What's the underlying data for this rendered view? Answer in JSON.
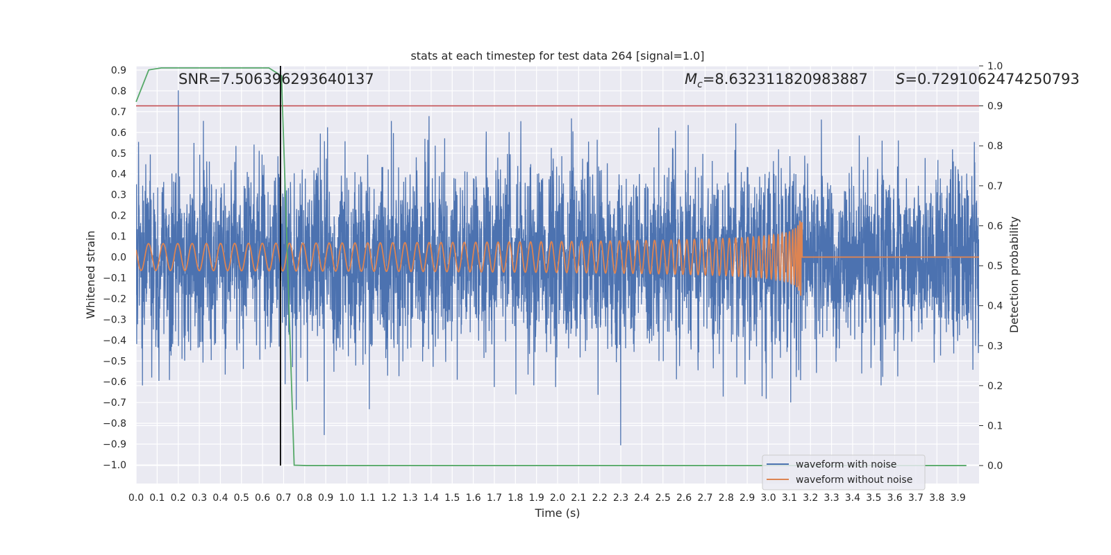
{
  "chart_data": {
    "type": "line",
    "title": "stats at each timestep for test data 264 [signal=1.0]",
    "xlabel": "Time (s)",
    "ylabel": "Whitened strain",
    "y2label": "Detection probability",
    "xlim": [
      0.0,
      4.0
    ],
    "ylim": [
      -1.09,
      0.92
    ],
    "y2lim": [
      -0.045,
      1.0
    ],
    "xticks": [
      "0.0",
      "0.1",
      "0.2",
      "0.3",
      "0.4",
      "0.5",
      "0.6",
      "0.7",
      "0.8",
      "0.9",
      "1.0",
      "1.1",
      "1.2",
      "1.3",
      "1.4",
      "1.5",
      "1.6",
      "1.7",
      "1.8",
      "1.9",
      "2.0",
      "2.1",
      "2.2",
      "2.3",
      "2.4",
      "2.5",
      "2.6",
      "2.7",
      "2.8",
      "2.9",
      "3.0",
      "3.1",
      "3.2",
      "3.3",
      "3.4",
      "3.5",
      "3.6",
      "3.7",
      "3.8",
      "3.9"
    ],
    "yticks": [
      "0.9",
      "0.8",
      "0.7",
      "0.6",
      "0.5",
      "0.4",
      "0.3",
      "0.2",
      "0.1",
      "0.0",
      "−0.1",
      "−0.2",
      "−0.3",
      "−0.4",
      "−0.5",
      "−0.6",
      "−0.7",
      "−0.8",
      "−0.9",
      "−1.0"
    ],
    "y2ticks": [
      "1.0",
      "0.9",
      "0.8",
      "0.7",
      "0.6",
      "0.5",
      "0.4",
      "0.3",
      "0.2",
      "0.1",
      "0.0"
    ],
    "grid": true,
    "legend_position": "bottom-right",
    "annotations": {
      "snr": "SNR=7.506396293640137",
      "mc": "M",
      "mc_sub": "c",
      "mc_value": "=8.632311820983887",
      "s": "S",
      "s_value": "=0.7291062474250793"
    },
    "threshold": 0.9,
    "marker_time": 0.685,
    "series": [
      {
        "name": "waveform with noise",
        "color": "#4c72b0",
        "kind": "noise",
        "std": 0.22,
        "samples": 4096
      },
      {
        "name": "waveform without noise",
        "color": "#dd8452",
        "kind": "chirp",
        "t_merge": 3.16,
        "amp_start": 0.03,
        "amp_end": 0.22
      },
      {
        "name": "detection probability",
        "color": "#55a868",
        "kind": "probability",
        "x": [
          0.0,
          0.06,
          0.12,
          0.19,
          0.25,
          0.31,
          0.38,
          0.44,
          0.5,
          0.56,
          0.63,
          0.69,
          0.75,
          0.81,
          0.88,
          0.94,
          1.0,
          1.06,
          1.13,
          1.19,
          1.25,
          1.31,
          1.38,
          1.44,
          1.5,
          1.56,
          1.63,
          1.69,
          1.75,
          1.81,
          1.88,
          1.94,
          2.0,
          2.06,
          2.13,
          2.19,
          2.25,
          2.31,
          2.38,
          2.44,
          2.5,
          2.56,
          2.63,
          2.69,
          2.75,
          2.81,
          2.88,
          2.94,
          3.0,
          3.06,
          3.13,
          3.19,
          3.25,
          3.31,
          3.38,
          3.44,
          3.5,
          3.56,
          3.63,
          3.69,
          3.75,
          3.81,
          3.88,
          3.94
        ],
        "y": [
          0.91,
          0.99,
          0.995,
          0.995,
          0.995,
          0.995,
          0.995,
          0.995,
          0.995,
          0.995,
          0.995,
          0.975,
          0.001,
          0.0,
          0.0,
          0.0,
          0.0,
          0.0,
          0.0,
          0.0,
          0.0,
          0.0,
          0.0,
          0.0,
          0.0,
          0.0,
          0.0,
          0.0,
          0.0,
          0.0,
          0.0,
          0.0,
          0.0,
          0.0,
          0.0,
          0.0,
          0.0,
          0.0,
          0.0,
          0.0,
          0.0,
          0.0,
          0.0,
          0.0,
          0.0,
          0.0,
          0.0,
          0.0,
          0.0,
          0.0,
          0.0,
          0.0,
          0.0,
          0.0,
          0.0,
          0.0,
          0.0,
          0.0,
          0.0,
          0.0,
          0.0,
          0.0,
          0.0,
          0.0
        ]
      }
    ],
    "threshold_color": "#c44e52",
    "marker_color": "#000000"
  }
}
